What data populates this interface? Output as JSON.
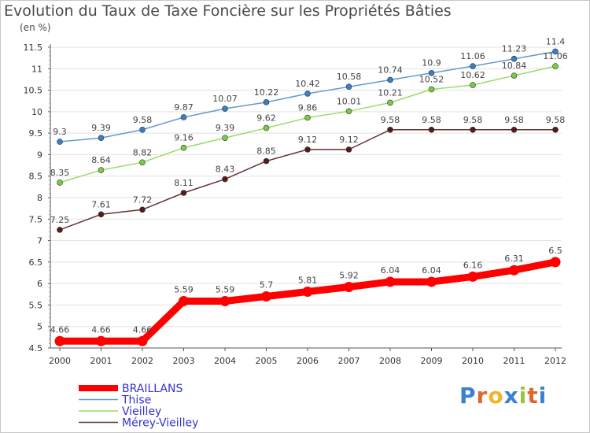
{
  "title": "Evolution du Taux de Taxe Foncière sur les Propriétés Bâties",
  "unit_label": "(en %)",
  "logo_text": "Proxiti",
  "chart_data": {
    "type": "line",
    "title": "Evolution du Taux de Taxe Foncière sur les Propriétés Bâties",
    "ylabel": "(en %)",
    "xlabel": "",
    "ylim": [
      4.5,
      11.5
    ],
    "ytick_step": 0.5,
    "ytick_labels": [
      "4.5",
      "5",
      "5.5",
      "6",
      "6.5",
      "7",
      "7.5",
      "8",
      "8.5",
      "9",
      "9.5",
      "10",
      "10.5",
      "11",
      "11.5"
    ],
    "categories": [
      "2000",
      "2001",
      "2002",
      "2003",
      "2004",
      "2005",
      "2006",
      "2007",
      "2008",
      "2009",
      "2010",
      "2011",
      "2012"
    ],
    "legend_position": "bottom-left",
    "series": [
      {
        "name": "BRAILLANS",
        "color": "#ff0000",
        "text_color": "#3333cc",
        "width": "bold",
        "values": [
          4.66,
          4.66,
          4.66,
          5.59,
          5.59,
          5.7,
          5.81,
          5.92,
          6.04,
          6.04,
          6.16,
          6.31,
          6.5
        ],
        "labels": [
          "4.66",
          "4.66",
          "4.66",
          "5.59",
          "5.59",
          "5.7",
          "5.81",
          "5.92",
          "6.04",
          "6.04",
          "6.16",
          "6.31",
          "6.5"
        ]
      },
      {
        "name": "Thise",
        "color": "#6699cc",
        "marker": "#3a7ec8",
        "text_color": "#3333cc",
        "width": "thin",
        "values": [
          9.3,
          9.39,
          9.58,
          9.87,
          10.07,
          10.22,
          10.42,
          10.58,
          10.74,
          10.9,
          11.06,
          11.23,
          11.4
        ],
        "labels": [
          "9.3",
          "9.39",
          "9.58",
          "9.87",
          "10.07",
          "10.22",
          "10.42",
          "10.58",
          "10.74",
          "10.9",
          "11.06",
          "11.23",
          "11.4"
        ]
      },
      {
        "name": "Vieilley",
        "color": "#99dd66",
        "marker": "#77cc44",
        "text_color": "#3333cc",
        "width": "thin",
        "values": [
          8.35,
          8.64,
          8.82,
          9.16,
          9.39,
          9.62,
          9.86,
          10.01,
          10.21,
          10.52,
          10.62,
          10.84,
          11.06
        ],
        "labels": [
          "8.35",
          "8.64",
          "8.82",
          "9.16",
          "9.39",
          "9.62",
          "9.86",
          "10.01",
          "10.21",
          "10.52",
          "10.62",
          "10.84",
          "11.06"
        ]
      },
      {
        "name": "Mérey-Vieilley",
        "color": "#663333",
        "marker": "#551a1a",
        "text_color": "#3333cc",
        "width": "thin",
        "values": [
          7.25,
          7.61,
          7.72,
          8.11,
          8.43,
          8.85,
          9.12,
          9.12,
          9.58,
          9.58,
          9.58,
          9.58,
          9.58
        ],
        "labels": [
          "7.25",
          "7.61",
          "7.72",
          "8.11",
          "8.43",
          "8.85",
          "9.12",
          "9.12",
          "9.58",
          "9.58",
          "9.58",
          "9.58",
          "9.58"
        ]
      }
    ]
  }
}
